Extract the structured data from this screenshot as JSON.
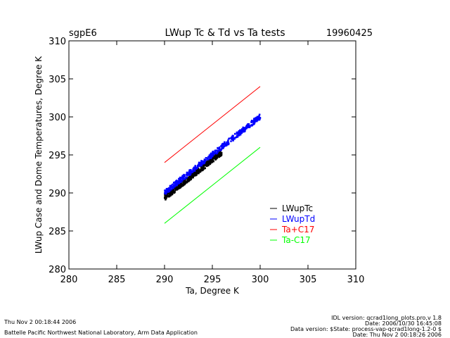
{
  "chart_data": {
    "type": "line",
    "title": "LWup Tc & Td vs Ta tests",
    "site": "sgpE6",
    "date": "19960425",
    "xlabel": "Ta, Degree K",
    "ylabel": "LWup Case and Dome Temperatures, Degree K",
    "xlim": [
      280,
      310
    ],
    "ylim": [
      280,
      310
    ],
    "xticks": [
      "280",
      "285",
      "290",
      "295",
      "300",
      "305",
      "310"
    ],
    "yticks": [
      "280",
      "285",
      "290",
      "295",
      "300",
      "305",
      "310"
    ],
    "legend_position": "bottom-right",
    "series": [
      {
        "name": "LWupTc",
        "color": "#000000",
        "kind": "scatter",
        "x_range": [
          290,
          296
        ],
        "offset": -0.6
      },
      {
        "name": "LWupTd",
        "color": "#0000ff",
        "kind": "scatter",
        "x_range": [
          290,
          300
        ],
        "offset": 0.1
      },
      {
        "name": "Ta+C17",
        "color": "#ff0000",
        "kind": "line",
        "x": [
          290,
          300
        ],
        "y": [
          294,
          304
        ]
      },
      {
        "name": "Ta-C17",
        "color": "#00ff00",
        "kind": "line",
        "x": [
          290,
          300
        ],
        "y": [
          286,
          296
        ]
      }
    ]
  },
  "footer": {
    "timestamp": "Thu Nov  2 00:18:44 2006",
    "org": "Battelle Pacific Northwest National Laboratory, Arm Data Application",
    "idl_version": "IDL version: qcrad1long_plots.pro,v 1.8",
    "idl_date": "Date: 2006/10/30 16:45:08",
    "data_version": "Data version: $State: process-vap-qcrad1long-1.2-0 $",
    "data_date": "Date: Thu Nov  2 00:18:26 2006"
  }
}
